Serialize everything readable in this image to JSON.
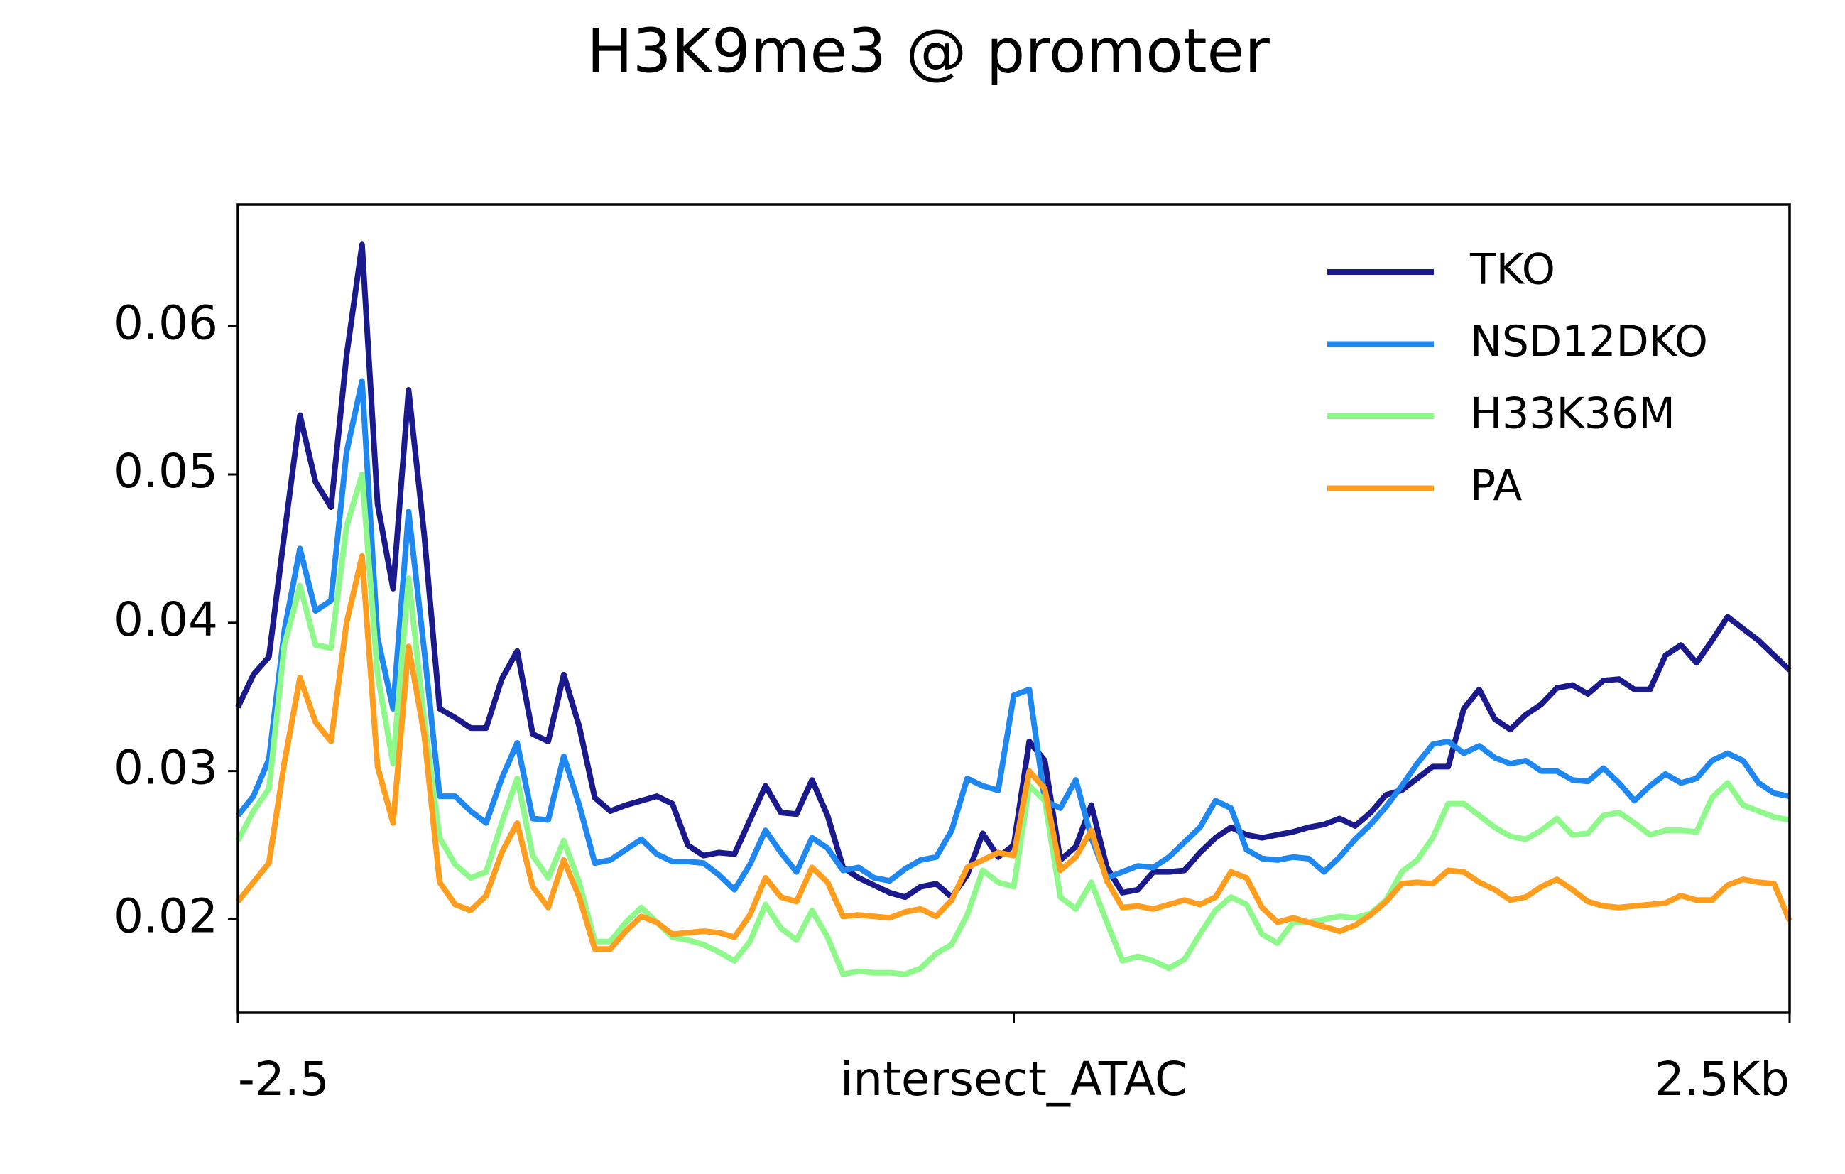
{
  "chart_data": {
    "type": "line",
    "title": "H3K9me3 @ promoter",
    "x": [
      -2.5,
      -2.45,
      -2.4,
      -2.35,
      -2.3,
      -2.25,
      -2.2,
      -2.15,
      -2.1,
      -2.05,
      -2,
      -1.95,
      -1.9,
      -1.85,
      -1.8,
      -1.75,
      -1.7,
      -1.65,
      -1.6,
      -1.55,
      -1.5,
      -1.45,
      -1.4,
      -1.35,
      -1.3,
      -1.25,
      -1.2,
      -1.15,
      -1.1,
      -1.05,
      -1,
      -0.95,
      -0.9,
      -0.85,
      -0.8,
      -0.75,
      -0.7,
      -0.65,
      -0.6,
      -0.55,
      -0.5,
      -0.45,
      -0.4,
      -0.35,
      -0.3,
      -0.25,
      -0.2,
      -0.15,
      -0.1,
      -0.05,
      0,
      0.05,
      0.1,
      0.15,
      0.2,
      0.25,
      0.3,
      0.35,
      0.4,
      0.45,
      0.5,
      0.55,
      0.6,
      0.65,
      0.7,
      0.75,
      0.8,
      0.85,
      0.9,
      0.95,
      1,
      1.05,
      1.1,
      1.15,
      1.2,
      1.25,
      1.3,
      1.35,
      1.4,
      1.45,
      1.5,
      1.55,
      1.6,
      1.65,
      1.7,
      1.75,
      1.8,
      1.85,
      1.9,
      1.95,
      2,
      2.05,
      2.1,
      2.15,
      2.2,
      2.25,
      2.3,
      2.35,
      2.4,
      2.45,
      2.5
    ],
    "series": [
      {
        "name": "TKO",
        "color": "#1a1a8c",
        "values": [
          0.0343,
          0.0365,
          0.0377,
          0.046,
          0.054,
          0.0495,
          0.0478,
          0.058,
          0.0655,
          0.048,
          0.0423,
          0.0557,
          0.046,
          0.0342,
          0.0336,
          0.0329,
          0.0329,
          0.0362,
          0.0381,
          0.0325,
          0.032,
          0.0365,
          0.033,
          0.0282,
          0.0273,
          0.0277,
          0.028,
          0.0283,
          0.0278,
          0.025,
          0.0243,
          0.0245,
          0.0244,
          0.0267,
          0.029,
          0.0272,
          0.0271,
          0.0294,
          0.027,
          0.0235,
          0.0228,
          0.0223,
          0.0218,
          0.0215,
          0.0222,
          0.0224,
          0.0215,
          0.023,
          0.0258,
          0.0242,
          0.025,
          0.032,
          0.0307,
          0.024,
          0.0249,
          0.0277,
          0.0235,
          0.0218,
          0.022,
          0.0232,
          0.0232,
          0.0233,
          0.0245,
          0.0255,
          0.0262,
          0.0257,
          0.0255,
          0.0257,
          0.0259,
          0.0262,
          0.0264,
          0.0268,
          0.0263,
          0.0272,
          0.0284,
          0.0287,
          0.0295,
          0.0303,
          0.0303,
          0.0342,
          0.0355,
          0.0335,
          0.0328,
          0.0338,
          0.0345,
          0.0356,
          0.0358,
          0.0352,
          0.0361,
          0.0362,
          0.0355,
          0.0355,
          0.0378,
          0.0385,
          0.0373,
          0.0388,
          0.0404,
          0.0396,
          0.0388,
          0.0378,
          0.0368
        ]
      },
      {
        "name": "NSD12DKO",
        "color": "#1e88f0",
        "values": [
          0.027,
          0.0283,
          0.0308,
          0.0395,
          0.045,
          0.0408,
          0.0415,
          0.0515,
          0.0563,
          0.039,
          0.0342,
          0.0475,
          0.0382,
          0.0283,
          0.0283,
          0.0273,
          0.0265,
          0.0295,
          0.0319,
          0.0268,
          0.0267,
          0.031,
          0.0277,
          0.0238,
          0.024,
          0.0247,
          0.0254,
          0.0244,
          0.0239,
          0.0239,
          0.0238,
          0.023,
          0.022,
          0.0237,
          0.026,
          0.0245,
          0.0232,
          0.0255,
          0.0248,
          0.0233,
          0.0235,
          0.0228,
          0.0226,
          0.0234,
          0.024,
          0.0242,
          0.026,
          0.0295,
          0.029,
          0.0287,
          0.0351,
          0.0355,
          0.028,
          0.0275,
          0.0294,
          0.0255,
          0.0228,
          0.0232,
          0.0236,
          0.0235,
          0.0242,
          0.0252,
          0.0262,
          0.028,
          0.0275,
          0.0247,
          0.0241,
          0.024,
          0.0242,
          0.0241,
          0.0232,
          0.0242,
          0.0254,
          0.0264,
          0.0276,
          0.029,
          0.0305,
          0.0318,
          0.032,
          0.0312,
          0.0317,
          0.0309,
          0.0305,
          0.0307,
          0.03,
          0.03,
          0.0294,
          0.0293,
          0.0302,
          0.0292,
          0.028,
          0.029,
          0.0298,
          0.0292,
          0.0295,
          0.0307,
          0.0312,
          0.0307,
          0.0292,
          0.0285,
          0.0283
        ]
      },
      {
        "name": "H33K36M",
        "color": "#8ef98a",
        "values": [
          0.0253,
          0.0273,
          0.0288,
          0.0385,
          0.0425,
          0.0385,
          0.0383,
          0.0465,
          0.05,
          0.0365,
          0.0305,
          0.043,
          0.0335,
          0.0255,
          0.0237,
          0.0228,
          0.0232,
          0.0265,
          0.0295,
          0.0243,
          0.0228,
          0.0253,
          0.0225,
          0.0185,
          0.0185,
          0.0198,
          0.0208,
          0.0198,
          0.0188,
          0.0186,
          0.0183,
          0.0178,
          0.0172,
          0.0185,
          0.021,
          0.0194,
          0.0186,
          0.0206,
          0.0188,
          0.0163,
          0.0165,
          0.0164,
          0.0164,
          0.0163,
          0.0167,
          0.0177,
          0.0183,
          0.0203,
          0.0233,
          0.0225,
          0.0222,
          0.029,
          0.028,
          0.0215,
          0.0207,
          0.0225,
          0.0198,
          0.0172,
          0.0175,
          0.0172,
          0.0167,
          0.0173,
          0.019,
          0.0206,
          0.0215,
          0.021,
          0.019,
          0.0184,
          0.0198,
          0.0198,
          0.02,
          0.0202,
          0.0201,
          0.0204,
          0.0213,
          0.0232,
          0.024,
          0.0255,
          0.0278,
          0.0278,
          0.027,
          0.0262,
          0.0256,
          0.0254,
          0.026,
          0.0268,
          0.0257,
          0.0258,
          0.027,
          0.0272,
          0.0265,
          0.0257,
          0.026,
          0.026,
          0.0259,
          0.0282,
          0.0292,
          0.0277,
          0.0273,
          0.0269,
          0.0267
        ]
      },
      {
        "name": "PA",
        "color": "#ff9d1f",
        "values": [
          0.0212,
          0.0225,
          0.0238,
          0.0306,
          0.0363,
          0.0333,
          0.032,
          0.04,
          0.0445,
          0.0303,
          0.0265,
          0.0384,
          0.0325,
          0.0225,
          0.021,
          0.0206,
          0.0216,
          0.0245,
          0.0265,
          0.0222,
          0.0208,
          0.024,
          0.0215,
          0.018,
          0.018,
          0.0192,
          0.0202,
          0.0198,
          0.019,
          0.0191,
          0.0192,
          0.0191,
          0.0188,
          0.0203,
          0.0228,
          0.0215,
          0.0212,
          0.0235,
          0.0225,
          0.0202,
          0.0203,
          0.0202,
          0.0201,
          0.0205,
          0.0207,
          0.0202,
          0.0213,
          0.0235,
          0.024,
          0.0245,
          0.0243,
          0.03,
          0.0288,
          0.0233,
          0.0242,
          0.026,
          0.0226,
          0.0208,
          0.0209,
          0.0207,
          0.021,
          0.0213,
          0.021,
          0.0215,
          0.0232,
          0.0228,
          0.0208,
          0.0198,
          0.0201,
          0.0198,
          0.0195,
          0.0192,
          0.0196,
          0.0203,
          0.0212,
          0.0224,
          0.0225,
          0.0224,
          0.0233,
          0.0232,
          0.0225,
          0.022,
          0.0213,
          0.0215,
          0.0222,
          0.0227,
          0.022,
          0.0212,
          0.0209,
          0.0208,
          0.0209,
          0.021,
          0.0211,
          0.0216,
          0.0213,
          0.0213,
          0.0223,
          0.0227,
          0.0225,
          0.0224,
          0.0199
        ]
      }
    ],
    "xlim": [
      -2.5,
      2.5
    ],
    "xticks": [
      -2.5,
      {
        "value": 0,
        "label": "intersect_ATAC"
      },
      {
        "value": 2.5,
        "label": "2.5Kb"
      }
    ],
    "ylim": [
      0.0137,
      0.0682
    ],
    "yticks": [
      0.02,
      0.03,
      0.04,
      0.05,
      0.06
    ],
    "legend": "upper right"
  }
}
